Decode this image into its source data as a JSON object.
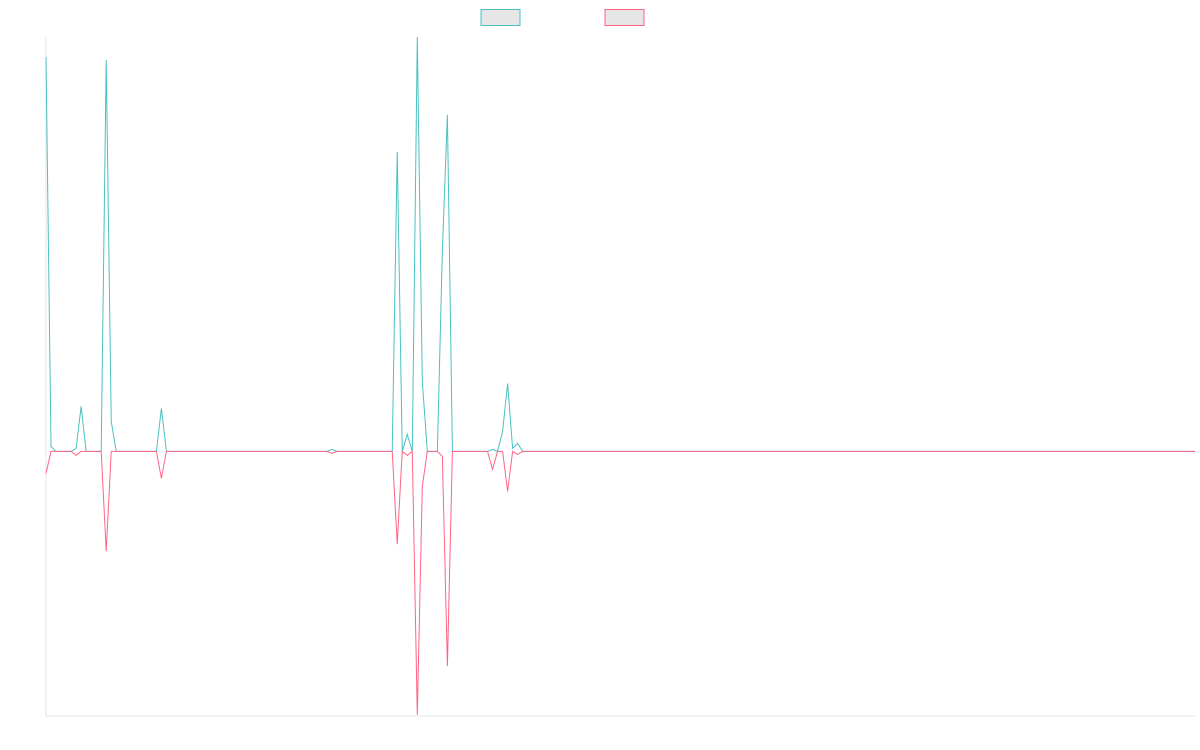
{
  "chart_data": {
    "type": "line",
    "categories": [
      null,
      null,
      null,
      null,
      null,
      null,
      null,
      null,
      null,
      null,
      null,
      null,
      null,
      null,
      null,
      null,
      null,
      null,
      null,
      null,
      null,
      null,
      null,
      null,
      null,
      null,
      null,
      null,
      null,
      null,
      null,
      null,
      null,
      null,
      null,
      null,
      null,
      null,
      null,
      null,
      null,
      null,
      null,
      null,
      null,
      null,
      null,
      null,
      null,
      null,
      null,
      null,
      null,
      null,
      null,
      null,
      null,
      null,
      null,
      null,
      null,
      null,
      null,
      null,
      null,
      null,
      null,
      null,
      null,
      null,
      null,
      null,
      null,
      null,
      null,
      null,
      null,
      null,
      null,
      null,
      null,
      null,
      null,
      null,
      null,
      null,
      null,
      null,
      null,
      null,
      null,
      null,
      null,
      null,
      null,
      null,
      null,
      null,
      null,
      null,
      null,
      null,
      null,
      null,
      null,
      null,
      null,
      null,
      null,
      null,
      null,
      null,
      null,
      null,
      null,
      null,
      null,
      null,
      null,
      null,
      null,
      null,
      null,
      null,
      null,
      null,
      null,
      null,
      null,
      null,
      null,
      null,
      null,
      null,
      null,
      null,
      null,
      null,
      null,
      null,
      null,
      null,
      null,
      null,
      null,
      null,
      null,
      null,
      null,
      null,
      null,
      null,
      null,
      null,
      null,
      null,
      null,
      null,
      null,
      null,
      null,
      null,
      null,
      null,
      null,
      null,
      null,
      null,
      null,
      null,
      null,
      null,
      null,
      null,
      null,
      null,
      null,
      null,
      null,
      null,
      null,
      null,
      null,
      null,
      null,
      null,
      null,
      null,
      null,
      null,
      null,
      null,
      null,
      null,
      null,
      null,
      null,
      null,
      null,
      null,
      null,
      null,
      null,
      null,
      null,
      null,
      null,
      null,
      null,
      null,
      null,
      null,
      null,
      null,
      null,
      null,
      null,
      null,
      null,
      null,
      null,
      null,
      null,
      null,
      null,
      null,
      null,
      null,
      null,
      null
    ],
    "series": [
      {
        "color": "#4bc0c0",
        "values": [
          395,
          5,
          0,
          0,
          0,
          0,
          3,
          45,
          0,
          0,
          0,
          0,
          392,
          30,
          0,
          0,
          0,
          0,
          0,
          0,
          0,
          0,
          0,
          43,
          0,
          0,
          0,
          0,
          0,
          0,
          0,
          0,
          0,
          0,
          0,
          0,
          0,
          0,
          0,
          0,
          0,
          0,
          0,
          0,
          0,
          0,
          0,
          0,
          0,
          0,
          0,
          0,
          0,
          0,
          0,
          0,
          0,
          2,
          0,
          0,
          0,
          0,
          0,
          0,
          0,
          0,
          0,
          0,
          0,
          0,
          300,
          0,
          17,
          0,
          415,
          70,
          0,
          0,
          0,
          202,
          337,
          0,
          0,
          0,
          0,
          0,
          0,
          0,
          0,
          2,
          0,
          20,
          68,
          3,
          8,
          0,
          0,
          0,
          0,
          0,
          0,
          0,
          0,
          0,
          0,
          0,
          0,
          0,
          0,
          0,
          0,
          0,
          0,
          0,
          0,
          0,
          0,
          0,
          0,
          0,
          0,
          0,
          0,
          0,
          0,
          0,
          0,
          0,
          0,
          0,
          0,
          0,
          0,
          0,
          0,
          0,
          0,
          0,
          0,
          0,
          0,
          0,
          0,
          0,
          0,
          0,
          0,
          0,
          0,
          0,
          0,
          0,
          0,
          0,
          0,
          0,
          0,
          0,
          0,
          0,
          0,
          0,
          0,
          0,
          0,
          0,
          0,
          0,
          0,
          0,
          0,
          0,
          0,
          0,
          0,
          0,
          0,
          0,
          0,
          0,
          0,
          0,
          0,
          0,
          0,
          0,
          0,
          0,
          0,
          0,
          0,
          0,
          0,
          0,
          0,
          0,
          0,
          0,
          0,
          0,
          0,
          0,
          0,
          0,
          0,
          0,
          0,
          0,
          0,
          0,
          0,
          0,
          0,
          0,
          0,
          0,
          0,
          0,
          0,
          0,
          0,
          0,
          0,
          0,
          0,
          0,
          0,
          0,
          0,
          0
        ]
      },
      {
        "color": "#ff6384",
        "values": [
          -22,
          0,
          0,
          0,
          0,
          0,
          -4,
          0,
          0,
          0,
          0,
          0,
          -100,
          0,
          0,
          0,
          0,
          0,
          0,
          0,
          0,
          0,
          0,
          -27,
          0,
          0,
          0,
          0,
          0,
          0,
          0,
          0,
          0,
          0,
          0,
          0,
          0,
          0,
          0,
          0,
          0,
          0,
          0,
          0,
          0,
          0,
          0,
          0,
          0,
          0,
          0,
          0,
          0,
          0,
          0,
          0,
          0,
          -2,
          0,
          0,
          0,
          0,
          0,
          0,
          0,
          0,
          0,
          0,
          0,
          0,
          -93,
          0,
          -4,
          0,
          -264,
          -35,
          0,
          0,
          0,
          -5,
          -215,
          0,
          0,
          0,
          0,
          0,
          0,
          0,
          0,
          -18,
          0,
          0,
          -40,
          0,
          -3,
          0,
          0,
          0,
          0,
          0,
          0,
          0,
          0,
          0,
          0,
          0,
          0,
          0,
          0,
          0,
          0,
          0,
          0,
          0,
          0,
          0,
          0,
          0,
          0,
          0,
          0,
          0,
          0,
          0,
          0,
          0,
          0,
          0,
          0,
          0,
          0,
          0,
          0,
          0,
          0,
          0,
          0,
          0,
          0,
          0,
          0,
          0,
          0,
          0,
          0,
          0,
          0,
          0,
          0,
          0,
          0,
          0,
          0,
          0,
          0,
          0,
          0,
          0,
          0,
          0,
          0,
          0,
          0,
          0,
          0,
          0,
          0,
          0,
          0,
          0,
          0,
          0,
          0,
          0,
          0,
          0,
          0,
          0,
          0,
          0,
          0,
          0,
          0,
          0,
          0,
          0,
          0,
          0,
          0,
          0,
          0,
          0,
          0,
          0,
          0,
          0,
          0,
          0,
          0,
          0,
          0,
          0,
          0,
          0,
          0,
          0,
          0,
          0,
          0,
          0,
          0,
          0,
          0,
          0,
          0,
          0,
          0,
          0,
          0,
          0,
          0,
          0,
          0,
          0,
          0,
          0,
          0,
          0,
          0,
          0
        ]
      }
    ],
    "ylim": [
      -265,
      415
    ]
  }
}
